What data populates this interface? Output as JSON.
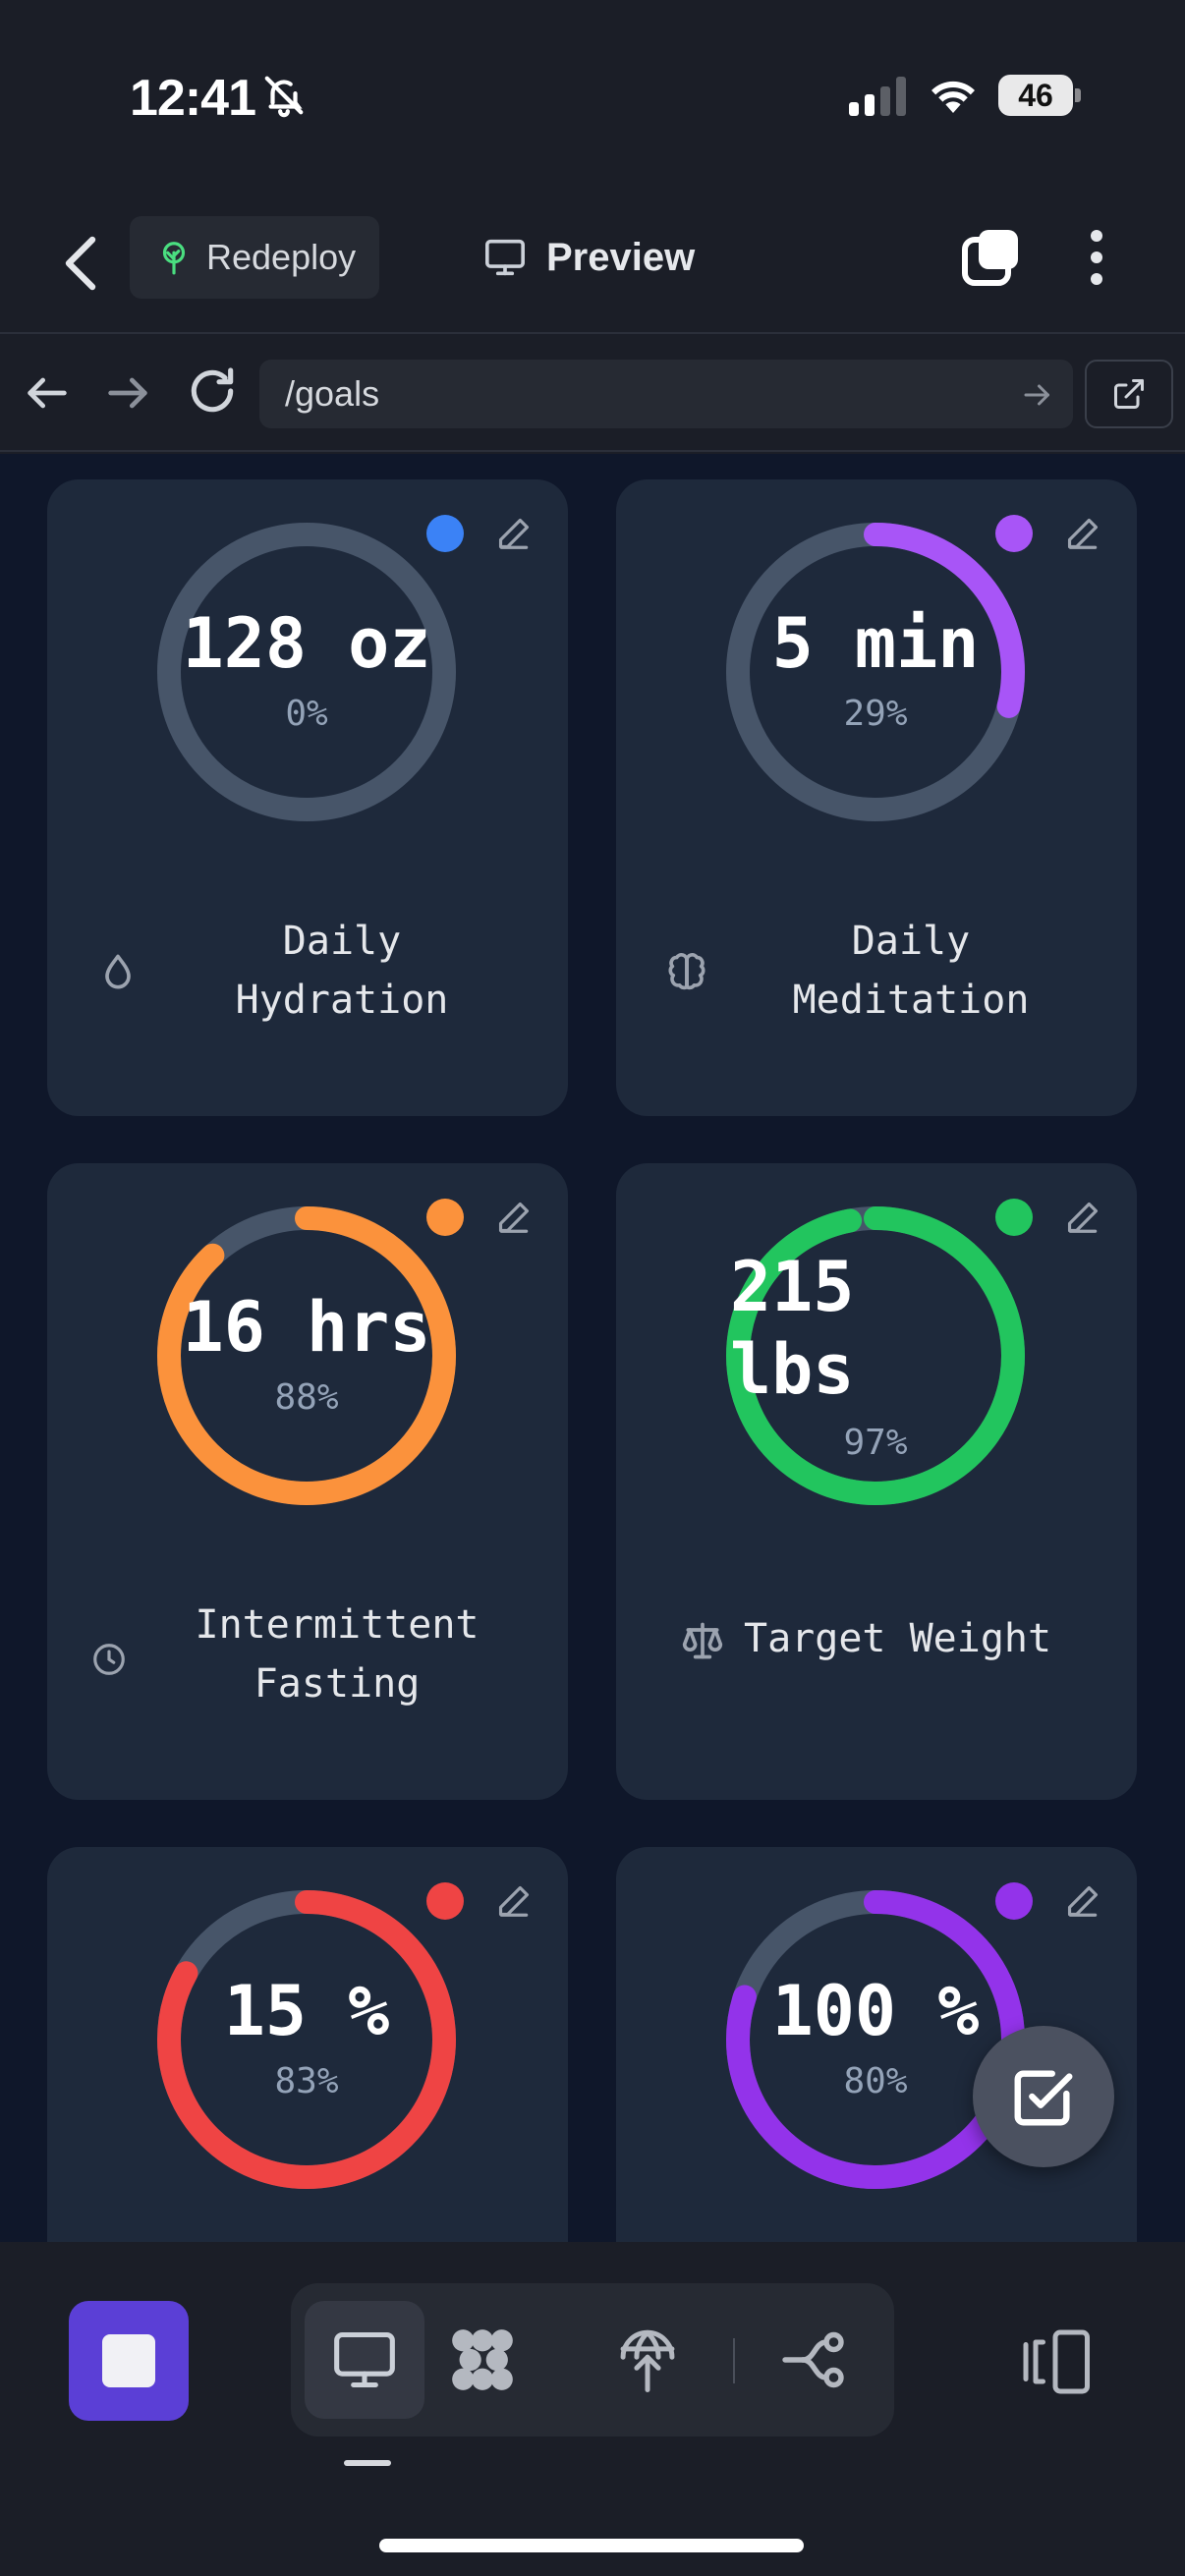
{
  "status_bar": {
    "time": "12:41",
    "battery": "46"
  },
  "toolbar": {
    "redeploy_label": "Redeploy",
    "preview_label": "Preview"
  },
  "browser": {
    "url": "/goals"
  },
  "goals": [
    {
      "value": "128 oz",
      "percent": "0%",
      "progress": 0.0,
      "color": "#3b82f6",
      "label_lines": [
        "Daily",
        "Hydration"
      ],
      "icon": "droplet-icon"
    },
    {
      "value": "5 min",
      "percent": "29%",
      "progress": 0.29,
      "color": "#a855f7",
      "label_lines": [
        "Daily",
        "Meditation"
      ],
      "icon": "brain-icon"
    },
    {
      "value": "16 hrs",
      "percent": "88%",
      "progress": 0.88,
      "color": "#fb923c",
      "label_lines": [
        "Intermittent",
        "Fasting"
      ],
      "icon": "clock-icon"
    },
    {
      "value_lines": [
        "215",
        "lbs"
      ],
      "percent": "97%",
      "progress": 0.97,
      "color": "#22c55e",
      "label_lines": [
        "Target Weight"
      ],
      "icon": "scale-icon"
    },
    {
      "value": "15 %",
      "percent": "83%",
      "progress": 0.83,
      "color": "#ef4444",
      "label_lines": [],
      "icon": ""
    },
    {
      "value": "100 %",
      "percent": "80%",
      "progress": 0.8,
      "color": "#9333ea",
      "label_lines": [],
      "icon": ""
    }
  ],
  "colors": {
    "ring_track": "#475569",
    "card_bg": "#1e293b",
    "page_bg": "#0f172a",
    "accent": "#5b3fd6"
  }
}
